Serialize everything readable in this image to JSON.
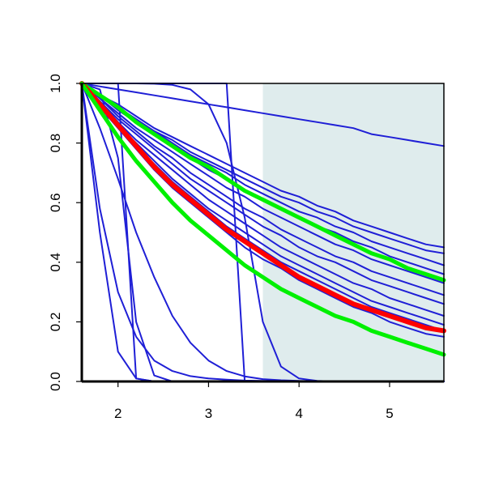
{
  "chart_data": {
    "type": "line",
    "title": "",
    "xlabel": "",
    "ylabel": "",
    "xlim": [
      1.6,
      5.6
    ],
    "ylim": [
      0.0,
      1.0
    ],
    "x_ticks": [
      2,
      3,
      4,
      5
    ],
    "y_ticks": [
      0.0,
      0.2,
      0.4,
      0.6,
      0.8,
      1.0
    ],
    "x_tick_labels": [
      "2",
      "3",
      "4",
      "5"
    ],
    "y_tick_labels": [
      "0.0",
      "0.2",
      "0.4",
      "0.6",
      "0.8",
      "1.0"
    ],
    "x": [
      1.6,
      1.8,
      2.0,
      2.2,
      2.4,
      2.6,
      2.8,
      3.0,
      3.2,
      3.4,
      3.6,
      3.8,
      4.0,
      4.2,
      4.4,
      4.6,
      4.8,
      5.0,
      5.2,
      5.4,
      5.6
    ],
    "shaded_region": {
      "x_from": 3.6,
      "x_to": 5.6,
      "color": "#dfeced"
    },
    "grid": false,
    "legend": "none",
    "colors": {
      "blue": "#1f1fd6",
      "red": "#ff0000",
      "green": "#00f000"
    },
    "series": [
      {
        "color": "#1f1fd6",
        "width": 2,
        "values": [
          1.0,
          0.5,
          0.1,
          0.01,
          0,
          0,
          0,
          0,
          0,
          0,
          0,
          0,
          0,
          0,
          0,
          0,
          0,
          0,
          0,
          0,
          0
        ]
      },
      {
        "color": "#1f1fd6",
        "width": 2,
        "values": [
          1.0,
          0.58,
          0.3,
          0.15,
          0.07,
          0.035,
          0.018,
          0.01,
          0.006,
          0.003,
          0.002,
          0.001,
          0,
          0,
          0,
          0,
          0,
          0,
          0,
          0,
          0
        ]
      },
      {
        "color": "#1f1fd6",
        "width": 2,
        "values": [
          1.0,
          0.85,
          0.68,
          0.5,
          0.35,
          0.22,
          0.13,
          0.07,
          0.035,
          0.017,
          0.008,
          0.004,
          0.002,
          0.001,
          0,
          0,
          0,
          0,
          0,
          0,
          0
        ]
      },
      {
        "color": "#1f1fd6",
        "width": 2,
        "values": [
          1.0,
          0.98,
          0.75,
          0.2,
          0.02,
          0,
          0,
          0,
          0,
          0,
          0,
          0,
          0,
          0,
          0,
          0,
          0,
          0,
          0,
          0,
          0
        ]
      },
      {
        "color": "#1f1fd6",
        "width": 2,
        "values": [
          1.0,
          1.0,
          1.0,
          0.01,
          0,
          0,
          0,
          0,
          0,
          0,
          0,
          0,
          0,
          0,
          0,
          0,
          0,
          0,
          0,
          0,
          0
        ]
      },
      {
        "color": "#1f1fd6",
        "width": 2,
        "values": [
          1.0,
          1.0,
          1.0,
          1.0,
          1.0,
          1.0,
          1.0,
          1.0,
          1.0,
          0.002,
          0,
          0,
          0,
          0,
          0,
          0,
          0,
          0,
          0,
          0,
          0
        ]
      },
      {
        "color": "#1f1fd6",
        "width": 2,
        "values": [
          1.0,
          1.0,
          1.0,
          1.0,
          0.999,
          0.995,
          0.98,
          0.93,
          0.8,
          0.55,
          0.2,
          0.05,
          0.01,
          0.002,
          0,
          0,
          0,
          0,
          0,
          0,
          0
        ]
      },
      {
        "color": "#1f1fd6",
        "width": 2,
        "values": [
          1.0,
          0.99,
          0.98,
          0.97,
          0.96,
          0.95,
          0.94,
          0.93,
          0.92,
          0.91,
          0.9,
          0.89,
          0.88,
          0.87,
          0.86,
          0.85,
          0.83,
          0.82,
          0.81,
          0.8,
          0.79
        ]
      },
      {
        "color": "#1f1fd6",
        "width": 2,
        "values": [
          1.0,
          0.96,
          0.93,
          0.89,
          0.85,
          0.82,
          0.79,
          0.76,
          0.73,
          0.7,
          0.67,
          0.64,
          0.62,
          0.59,
          0.57,
          0.54,
          0.52,
          0.5,
          0.48,
          0.46,
          0.45
        ]
      },
      {
        "color": "#1f1fd6",
        "width": 2,
        "values": [
          1.0,
          0.96,
          0.92,
          0.88,
          0.84,
          0.81,
          0.77,
          0.74,
          0.71,
          0.68,
          0.65,
          0.62,
          0.6,
          0.57,
          0.55,
          0.52,
          0.5,
          0.48,
          0.46,
          0.44,
          0.43
        ]
      },
      {
        "color": "#1f1fd6",
        "width": 2,
        "values": [
          1.0,
          0.96,
          0.92,
          0.88,
          0.84,
          0.8,
          0.76,
          0.73,
          0.7,
          0.66,
          0.63,
          0.6,
          0.57,
          0.55,
          0.52,
          0.5,
          0.47,
          0.45,
          0.43,
          0.41,
          0.39
        ]
      },
      {
        "color": "#1f1fd6",
        "width": 2,
        "values": [
          1.0,
          0.96,
          0.91,
          0.87,
          0.83,
          0.79,
          0.75,
          0.71,
          0.68,
          0.64,
          0.61,
          0.58,
          0.55,
          0.52,
          0.5,
          0.47,
          0.45,
          0.42,
          0.4,
          0.38,
          0.36
        ]
      },
      {
        "color": "#1f1fd6",
        "width": 2,
        "values": [
          1.0,
          0.95,
          0.9,
          0.85,
          0.81,
          0.77,
          0.73,
          0.69,
          0.65,
          0.62,
          0.58,
          0.55,
          0.52,
          0.49,
          0.46,
          0.44,
          0.41,
          0.39,
          0.37,
          0.35,
          0.33
        ]
      },
      {
        "color": "#1f1fd6",
        "width": 2,
        "values": [
          1.0,
          0.95,
          0.89,
          0.84,
          0.79,
          0.75,
          0.7,
          0.66,
          0.62,
          0.58,
          0.55,
          0.51,
          0.48,
          0.45,
          0.42,
          0.4,
          0.37,
          0.35,
          0.33,
          0.31,
          0.29
        ]
      },
      {
        "color": "#1f1fd6",
        "width": 2,
        "values": [
          1.0,
          0.94,
          0.88,
          0.83,
          0.78,
          0.73,
          0.68,
          0.64,
          0.6,
          0.56,
          0.52,
          0.49,
          0.45,
          0.42,
          0.4,
          0.37,
          0.34,
          0.32,
          0.3,
          0.28,
          0.26
        ]
      },
      {
        "color": "#1f1fd6",
        "width": 2,
        "values": [
          1.0,
          0.94,
          0.87,
          0.81,
          0.76,
          0.71,
          0.66,
          0.61,
          0.57,
          0.53,
          0.49,
          0.45,
          0.42,
          0.39,
          0.36,
          0.33,
          0.31,
          0.28,
          0.26,
          0.24,
          0.22
        ]
      },
      {
        "color": "#1f1fd6",
        "width": 2,
        "values": [
          1.0,
          0.93,
          0.86,
          0.8,
          0.74,
          0.68,
          0.63,
          0.58,
          0.54,
          0.5,
          0.46,
          0.42,
          0.39,
          0.36,
          0.33,
          0.3,
          0.27,
          0.25,
          0.23,
          0.21,
          0.19
        ]
      },
      {
        "color": "#1f1fd6",
        "width": 2,
        "values": [
          1.0,
          0.93,
          0.86,
          0.79,
          0.73,
          0.67,
          0.62,
          0.57,
          0.52,
          0.48,
          0.44,
          0.4,
          0.37,
          0.34,
          0.31,
          0.28,
          0.25,
          0.23,
          0.21,
          0.19,
          0.17
        ]
      },
      {
        "color": "#1f1fd6",
        "width": 2,
        "values": [
          1.0,
          0.92,
          0.85,
          0.78,
          0.71,
          0.65,
          0.6,
          0.55,
          0.5,
          0.45,
          0.41,
          0.38,
          0.34,
          0.31,
          0.28,
          0.25,
          0.23,
          0.2,
          0.18,
          0.16,
          0.15
        ]
      },
      {
        "color": "#00f000",
        "width": 5,
        "values": [
          1.0,
          0.96,
          0.92,
          0.87,
          0.83,
          0.79,
          0.75,
          0.72,
          0.68,
          0.64,
          0.61,
          0.58,
          0.55,
          0.52,
          0.49,
          0.46,
          0.43,
          0.41,
          0.38,
          0.36,
          0.34
        ]
      },
      {
        "color": "#ff0000",
        "width": 6,
        "values": [
          1.0,
          0.93,
          0.86,
          0.79,
          0.72,
          0.66,
          0.61,
          0.56,
          0.51,
          0.47,
          0.43,
          0.39,
          0.35,
          0.32,
          0.29,
          0.26,
          0.24,
          0.22,
          0.2,
          0.18,
          0.17
        ]
      },
      {
        "color": "#00f000",
        "width": 5,
        "values": [
          1.0,
          0.91,
          0.82,
          0.74,
          0.67,
          0.6,
          0.54,
          0.49,
          0.44,
          0.39,
          0.35,
          0.31,
          0.28,
          0.25,
          0.22,
          0.2,
          0.17,
          0.15,
          0.13,
          0.11,
          0.09
        ]
      }
    ]
  }
}
